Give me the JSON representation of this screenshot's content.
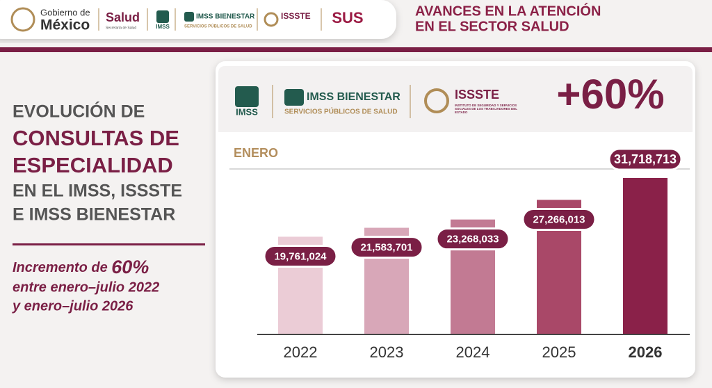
{
  "header": {
    "gov_top": "Gobierno de",
    "gov_bottom": "México",
    "salud": "Salud",
    "salud_sub": "Secretaría de Salud",
    "imss": "IMSS",
    "imss_bienestar": "IMSS BIENESTAR",
    "imss_bienestar_sub": "SERVICIOS PÚBLICOS DE SALUD",
    "issste": "ISSSTE",
    "sus": "SUS",
    "title_lines": [
      "AVANCES EN LA ATENCIÓN",
      "EN EL SECTOR SALUD"
    ]
  },
  "panel": {
    "title_lines": [
      "EVOLUCIÓN DE",
      "CONSULTAS DE",
      "ESPECIALIDAD",
      "EN EL IMSS, ISSSTE",
      "E IMSS BIENESTAR"
    ],
    "note_lead": "Incremento de",
    "note_pct": "60%",
    "note_lines": [
      "entre enero–julio 2022",
      "y enero–julio 2026"
    ]
  },
  "card": {
    "imss": "IMSS",
    "imss_bienestar": "IMSS BIENESTAR",
    "imss_bienestar_sub": "SERVICIOS PÚBLICOS DE SALUD",
    "issste": "ISSSTE",
    "issste_sub": "INSTITUTO DE SEGURIDAD Y SERVICIOS SOCIALES DE LOS TRABAJADORES DEL ESTADO",
    "increase": "+60%"
  },
  "chart_data": {
    "type": "bar",
    "subtitle": "ENERO",
    "categories": [
      "2022",
      "2023",
      "2024",
      "2025",
      "2026"
    ],
    "values": [
      19761024,
      21583701,
      23268033,
      27266013,
      31718713
    ],
    "value_labels": [
      "19,761,024",
      "21,583,701",
      "23,268,033",
      "27,266,013",
      "31,718,713"
    ],
    "colors": [
      "#ebccd6",
      "#d8a7b8",
      "#c27a93",
      "#a94868",
      "#8a2149"
    ]
  }
}
